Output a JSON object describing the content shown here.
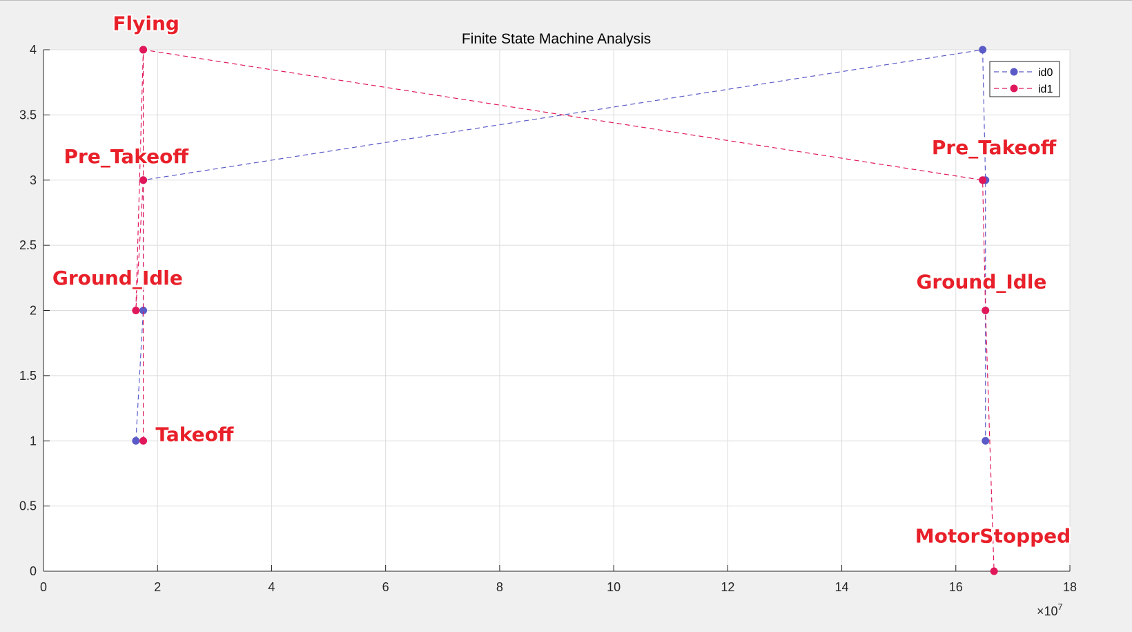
{
  "figure": {
    "background": "#f0f0f0"
  },
  "chart_data": {
    "type": "line",
    "title": "Finite State Machine Analysis",
    "xlabel": "",
    "ylabel": "",
    "xlim": [
      0,
      18
    ],
    "ylim": [
      0,
      4
    ],
    "x_ticks": [
      0,
      2,
      4,
      6,
      8,
      10,
      12,
      14,
      16,
      18
    ],
    "y_ticks": [
      0,
      0.5,
      1,
      1.5,
      2,
      2.5,
      3,
      3.5,
      4
    ],
    "x_tick_labels": [
      "0",
      "2",
      "4",
      "6",
      "8",
      "10",
      "12",
      "14",
      "16",
      "18"
    ],
    "y_tick_labels": [
      "0",
      "0.5",
      "1",
      "1.5",
      "2",
      "2.5",
      "3",
      "3.5",
      "4"
    ],
    "x_exponent_label": "×10",
    "x_exponent_power": "7",
    "grid": true,
    "legend_position": "top-right",
    "series": [
      {
        "name": "id0",
        "color": "#5b5bc8",
        "line_style": "dashed",
        "marker": "circle",
        "x": [
          1.62,
          1.75,
          1.75,
          16.47,
          16.52,
          16.52
        ],
        "y": [
          1,
          2,
          3,
          4,
          3,
          1
        ]
      },
      {
        "name": "id1",
        "color": "#e0185a",
        "line_style": "dashed",
        "marker": "circle",
        "x": [
          1.75,
          1.75,
          1.62,
          1.75,
          1.75,
          16.47,
          16.52,
          16.67
        ],
        "y": [
          1,
          4,
          2,
          3,
          4,
          3,
          2,
          0
        ]
      }
    ],
    "annotations": [
      {
        "text": "Flying",
        "x": 1.8,
        "y": 4.15
      },
      {
        "text": "Pre_Takeoff",
        "x": 1.45,
        "y": 3.13
      },
      {
        "text": "Ground_Idle",
        "x": 1.3,
        "y": 2.2
      },
      {
        "text": "Takeoff",
        "x": 2.65,
        "y": 1.0
      },
      {
        "text": "Pre_Takeoff",
        "x": 16.67,
        "y": 3.2
      },
      {
        "text": "Ground_Idle",
        "x": 16.45,
        "y": 2.17
      },
      {
        "text": "MotorStopped",
        "x": 16.65,
        "y": 0.22
      }
    ],
    "annotation_color": "#e8202a"
  }
}
